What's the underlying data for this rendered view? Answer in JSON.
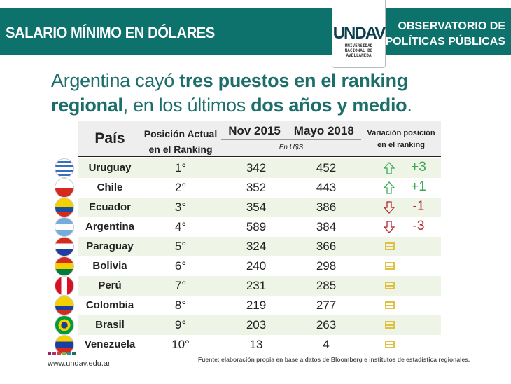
{
  "header": {
    "title": "SALARIO MÍNIMO EN DÓLARES",
    "observatorio": [
      "OBSERVATORIO DE",
      "POLÍTICAS PÚBLICAS"
    ],
    "logo": {
      "mark": "UNDAV",
      "sub": [
        "UNIVERSIDAD",
        "NACIONAL DE",
        "AVELLANEDA"
      ]
    }
  },
  "headline": {
    "p1": "Argentina cayó ",
    "b1": "tres puestos en el ranking",
    "b2": "regional",
    ",": "",
    "p2": ", en los últimos ",
    "b3": "dos años y medio",
    "p3": "."
  },
  "table": {
    "headers": {
      "pais": "País",
      "pos1": "Posición Actual",
      "pos2": "en el Ranking",
      "nov": "Nov 2015",
      "mayo": "Mayo 2018",
      "unit": "En U$S",
      "var1": "Variación posición",
      "var2": "en el ranking"
    },
    "rows": [
      {
        "country": "Uruguay",
        "pos": "1°",
        "nov": "342",
        "mayo": "452",
        "trend": "up",
        "change": "+3"
      },
      {
        "country": "Chile",
        "pos": "2°",
        "nov": "352",
        "mayo": "443",
        "trend": "up",
        "change": "+1"
      },
      {
        "country": "Ecuador",
        "pos": "3°",
        "nov": "354",
        "mayo": "386",
        "trend": "down",
        "change": "-1"
      },
      {
        "country": "Argentina",
        "pos": "4°",
        "nov": "589",
        "mayo": "384",
        "trend": "down",
        "change": "-3"
      },
      {
        "country": "Paraguay",
        "pos": "5°",
        "nov": "324",
        "mayo": "366",
        "trend": "equal",
        "change": ""
      },
      {
        "country": "Bolivia",
        "pos": "6°",
        "nov": "240",
        "mayo": "298",
        "trend": "equal",
        "change": ""
      },
      {
        "country": "Perú",
        "pos": "7°",
        "nov": "231",
        "mayo": "285",
        "trend": "equal",
        "change": ""
      },
      {
        "country": "Colombia",
        "pos": "8°",
        "nov": "219",
        "mayo": "277",
        "trend": "equal",
        "change": ""
      },
      {
        "country": "Brasil",
        "pos": "9°",
        "nov": "203",
        "mayo": "263",
        "trend": "equal",
        "change": ""
      },
      {
        "country": "Venezuela",
        "pos": "10°",
        "nov": "13",
        "mayo": "4",
        "trend": "equal",
        "change": ""
      }
    ]
  },
  "colors": {
    "teal": "#0d716c",
    "up": "#3aa855",
    "down": "#b3262a",
    "equal": "#e0c040"
  },
  "footer": {
    "url": "www.undav.edu.ar",
    "source": "Fuente: elaboración propia en base a datos de Bloomberg e institutos de estadística regionales."
  }
}
